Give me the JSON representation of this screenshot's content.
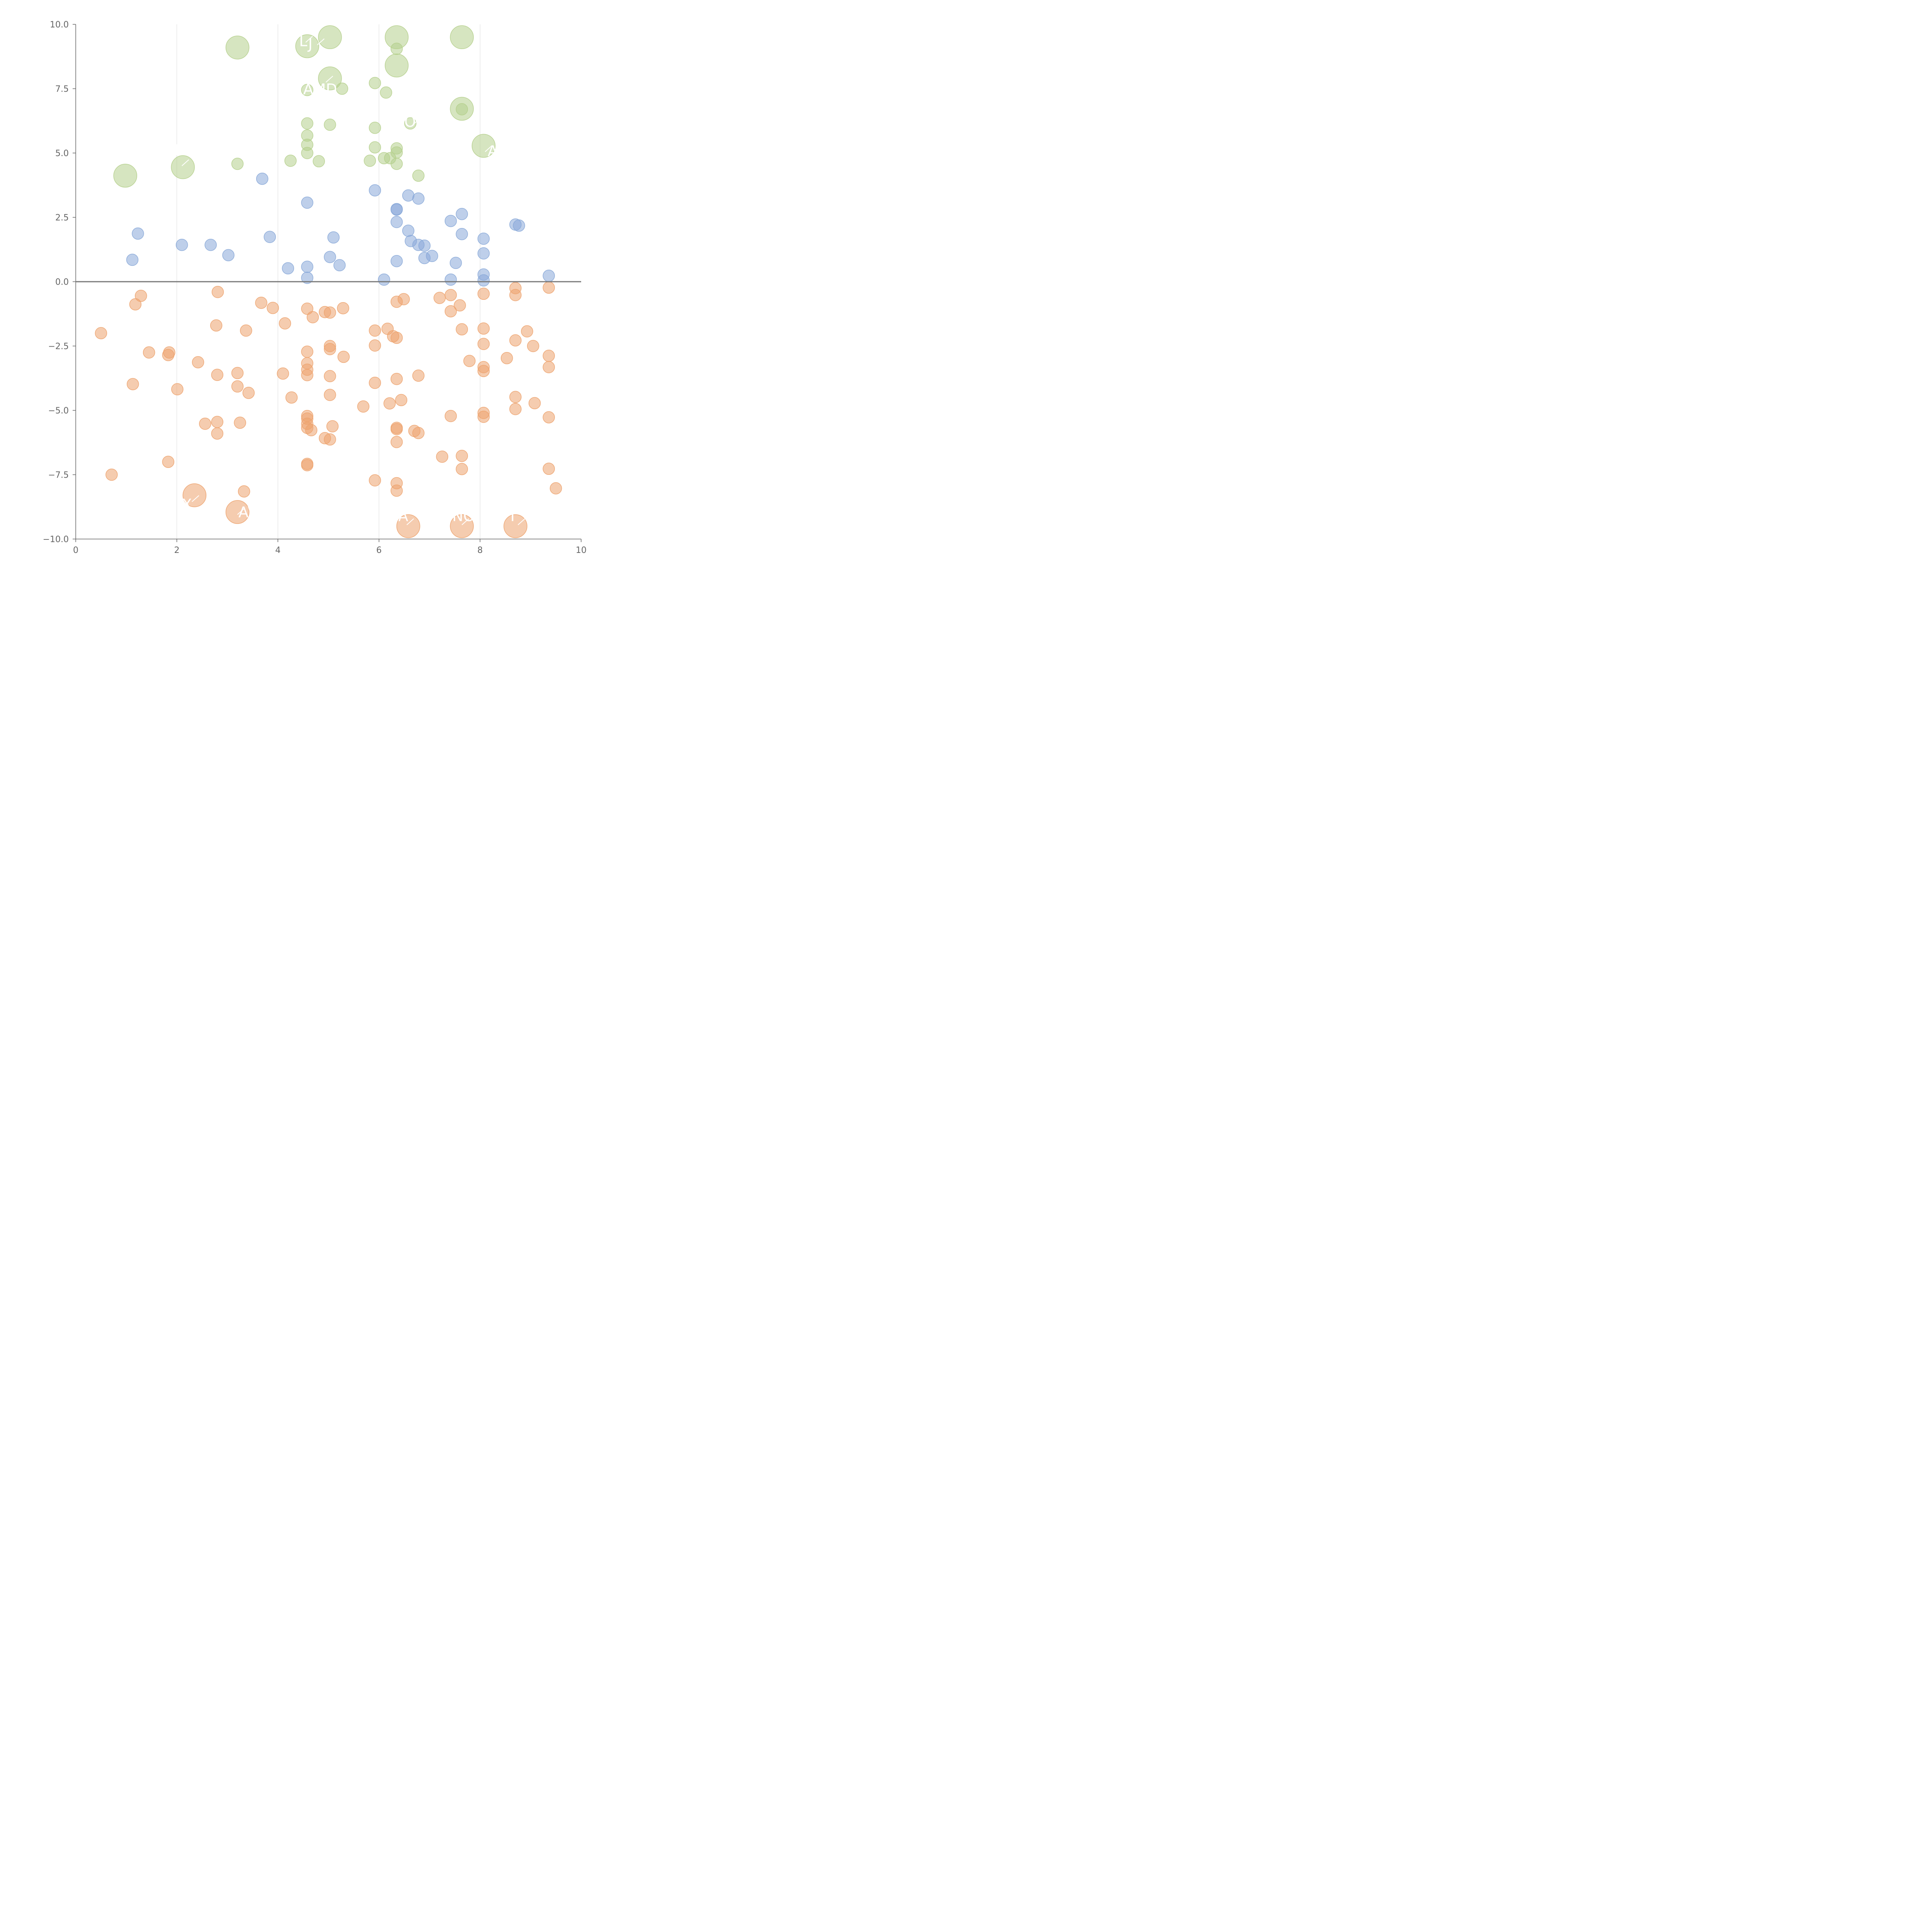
{
  "chart_data": {
    "type": "scatter",
    "xlim": [
      0,
      10
    ],
    "ylim": [
      -10,
      10
    ],
    "xticks": [
      "0",
      "2",
      "4",
      "6",
      "8",
      "10"
    ],
    "yticks": [
      "10.0",
      "7.5",
      "5.0",
      "2.5",
      "0.0",
      "−2.5",
      "−5.0",
      "−7.5",
      "−10.0"
    ],
    "xtick_values": [
      0,
      2,
      4,
      6,
      8,
      10
    ],
    "ytick_values": [
      10,
      7.5,
      5,
      2.5,
      0,
      -2.5,
      -5,
      -7.5,
      -10
    ],
    "vertical_grid_at": [
      2,
      4,
      6,
      8
    ],
    "zero_line": true,
    "colors": {
      "top": "#b5cf8c",
      "middle": "#88a8d8",
      "bottom": "#eda36e",
      "axis": "#666666",
      "grid": "#dddddd"
    },
    "series": [
      {
        "name": "top",
        "color": "#b5cf8c",
        "points": [
          [
            3.2,
            9.1,
            "L"
          ],
          [
            4.58,
            9.15,
            "L"
          ],
          [
            5.03,
            9.5,
            "L"
          ],
          [
            6.35,
            9.5,
            "L"
          ],
          [
            7.64,
            9.5,
            "L"
          ],
          [
            6.35,
            8.4,
            "L"
          ],
          [
            5.03,
            7.9,
            "L"
          ],
          [
            7.64,
            6.72,
            "L"
          ],
          [
            8.07,
            5.28,
            "L"
          ],
          [
            2.12,
            4.45,
            "L"
          ],
          [
            0.98,
            4.12,
            "L"
          ],
          [
            6.35,
            9.05,
            "S"
          ],
          [
            4.58,
            7.45,
            "S"
          ],
          [
            5.27,
            7.5,
            "S"
          ],
          [
            5.92,
            7.72,
            "S"
          ],
          [
            6.14,
            7.35,
            "S"
          ],
          [
            4.58,
            6.15,
            "S"
          ],
          [
            5.03,
            6.1,
            "S"
          ],
          [
            5.92,
            5.98,
            "S"
          ],
          [
            6.62,
            6.15,
            "S"
          ],
          [
            7.64,
            6.7,
            "S"
          ],
          [
            4.58,
            5.68,
            "S"
          ],
          [
            4.58,
            5.32,
            "S"
          ],
          [
            5.92,
            5.22,
            "S"
          ],
          [
            6.35,
            5.18,
            "S"
          ],
          [
            6.35,
            5.02,
            "S"
          ],
          [
            4.58,
            5.0,
            "S"
          ],
          [
            4.25,
            4.7,
            "S"
          ],
          [
            4.81,
            4.68,
            "S"
          ],
          [
            5.82,
            4.7,
            "S"
          ],
          [
            6.1,
            4.8,
            "S"
          ],
          [
            6.22,
            4.8,
            "S"
          ],
          [
            6.35,
            4.58,
            "S"
          ],
          [
            3.2,
            4.58,
            "S"
          ],
          [
            6.78,
            4.12,
            "S"
          ]
        ]
      },
      {
        "name": "middle",
        "color": "#88a8d8",
        "points": [
          [
            3.69,
            4.0
          ],
          [
            5.92,
            3.55
          ],
          [
            4.58,
            3.07
          ],
          [
            6.58,
            3.35
          ],
          [
            6.78,
            3.23
          ],
          [
            6.35,
            2.8
          ],
          [
            6.35,
            2.82
          ],
          [
            7.64,
            2.63
          ],
          [
            7.42,
            2.36
          ],
          [
            6.35,
            2.32
          ],
          [
            8.7,
            2.22
          ],
          [
            8.77,
            2.18
          ],
          [
            1.23,
            1.87
          ],
          [
            6.58,
            1.98
          ],
          [
            7.64,
            1.85
          ],
          [
            3.84,
            1.74
          ],
          [
            5.1,
            1.72
          ],
          [
            8.07,
            1.67
          ],
          [
            6.63,
            1.58
          ],
          [
            2.1,
            1.43
          ],
          [
            2.67,
            1.43
          ],
          [
            6.78,
            1.43
          ],
          [
            6.9,
            1.4
          ],
          [
            8.07,
            1.1
          ],
          [
            3.02,
            1.03
          ],
          [
            7.05,
            1.0
          ],
          [
            5.03,
            0.96
          ],
          [
            6.9,
            0.92
          ],
          [
            1.12,
            0.85
          ],
          [
            6.35,
            0.8
          ],
          [
            7.52,
            0.73
          ],
          [
            5.22,
            0.64
          ],
          [
            4.58,
            0.58
          ],
          [
            4.2,
            0.52
          ],
          [
            8.07,
            0.28
          ],
          [
            9.36,
            0.23
          ],
          [
            4.58,
            0.15
          ],
          [
            6.1,
            0.08
          ],
          [
            7.42,
            0.08
          ],
          [
            8.07,
            0.05
          ]
        ]
      },
      {
        "name": "bottom",
        "color": "#eda36e",
        "points": [
          [
            2.35,
            -8.3,
            "L"
          ],
          [
            3.2,
            -8.95,
            "L"
          ],
          [
            6.58,
            -9.5,
            "L"
          ],
          [
            7.64,
            -9.5,
            "L"
          ],
          [
            8.7,
            -9.5,
            "L"
          ],
          [
            1.29,
            -0.55,
            "S"
          ],
          [
            1.18,
            -0.88,
            "S"
          ],
          [
            2.81,
            -0.4,
            "S"
          ],
          [
            3.67,
            -0.82,
            "S"
          ],
          [
            3.9,
            -1.02,
            "S"
          ],
          [
            4.58,
            -1.05,
            "S"
          ],
          [
            4.93,
            -1.18,
            "S"
          ],
          [
            5.03,
            -1.2,
            "S"
          ],
          [
            5.29,
            -1.03,
            "S"
          ],
          [
            4.69,
            -1.38,
            "S"
          ],
          [
            4.14,
            -1.62,
            "S"
          ],
          [
            2.78,
            -1.7,
            "S"
          ],
          [
            3.37,
            -1.9,
            "S"
          ],
          [
            0.5,
            -2.0,
            "S"
          ],
          [
            5.92,
            -1.9,
            "S"
          ],
          [
            6.17,
            -1.83,
            "S"
          ],
          [
            6.28,
            -2.12,
            "S"
          ],
          [
            6.35,
            -2.18,
            "S"
          ],
          [
            6.35,
            -0.78,
            "S"
          ],
          [
            6.49,
            -0.68,
            "S"
          ],
          [
            7.2,
            -0.63,
            "S"
          ],
          [
            7.42,
            -0.52,
            "S"
          ],
          [
            7.42,
            -1.15,
            "S"
          ],
          [
            7.6,
            -0.92,
            "S"
          ],
          [
            7.64,
            -1.85,
            "S"
          ],
          [
            8.07,
            -0.47,
            "S"
          ],
          [
            8.07,
            -1.82,
            "S"
          ],
          [
            8.7,
            -0.25,
            "S"
          ],
          [
            8.7,
            -0.52,
            "S"
          ],
          [
            9.36,
            -0.23,
            "S"
          ],
          [
            8.93,
            -1.93,
            "S"
          ],
          [
            1.45,
            -2.75,
            "S"
          ],
          [
            1.85,
            -2.75,
            "S"
          ],
          [
            1.83,
            -2.85,
            "S"
          ],
          [
            2.42,
            -3.13,
            "S"
          ],
          [
            4.58,
            -2.72,
            "S"
          ],
          [
            5.03,
            -2.5,
            "S"
          ],
          [
            5.03,
            -2.62,
            "S"
          ],
          [
            5.3,
            -2.92,
            "S"
          ],
          [
            5.92,
            -2.48,
            "S"
          ],
          [
            8.07,
            -2.42,
            "S"
          ],
          [
            8.7,
            -2.28,
            "S"
          ],
          [
            9.05,
            -2.5,
            "S"
          ],
          [
            9.36,
            -2.88,
            "S"
          ],
          [
            8.53,
            -2.97,
            "S"
          ],
          [
            7.79,
            -3.08,
            "S"
          ],
          [
            4.58,
            -3.17,
            "S"
          ],
          [
            4.58,
            -3.42,
            "S"
          ],
          [
            4.58,
            -3.63,
            "S"
          ],
          [
            2.8,
            -3.62,
            "S"
          ],
          [
            3.2,
            -3.55,
            "S"
          ],
          [
            4.1,
            -3.57,
            "S"
          ],
          [
            5.03,
            -3.67,
            "S"
          ],
          [
            6.35,
            -3.78,
            "S"
          ],
          [
            6.78,
            -3.65,
            "S"
          ],
          [
            8.07,
            -3.32,
            "S"
          ],
          [
            8.07,
            -3.47,
            "S"
          ],
          [
            9.36,
            -3.32,
            "S"
          ],
          [
            1.13,
            -3.98,
            "S"
          ],
          [
            2.01,
            -4.18,
            "S"
          ],
          [
            3.2,
            -4.07,
            "S"
          ],
          [
            3.42,
            -4.32,
            "S"
          ],
          [
            5.92,
            -3.93,
            "S"
          ],
          [
            4.27,
            -4.5,
            "S"
          ],
          [
            5.03,
            -4.4,
            "S"
          ],
          [
            6.44,
            -4.6,
            "S"
          ],
          [
            6.21,
            -4.73,
            "S"
          ],
          [
            5.69,
            -4.85,
            "S"
          ],
          [
            8.7,
            -4.48,
            "S"
          ],
          [
            9.08,
            -4.72,
            "S"
          ],
          [
            8.7,
            -4.95,
            "S"
          ],
          [
            8.07,
            -5.1,
            "S"
          ],
          [
            8.07,
            -5.25,
            "S"
          ],
          [
            7.42,
            -5.22,
            "S"
          ],
          [
            9.36,
            -5.27,
            "S"
          ],
          [
            4.58,
            -5.22,
            "S"
          ],
          [
            4.58,
            -5.32,
            "S"
          ],
          [
            4.58,
            -5.52,
            "S"
          ],
          [
            4.58,
            -5.68,
            "S"
          ],
          [
            4.66,
            -5.77,
            "S"
          ],
          [
            5.08,
            -5.62,
            "S"
          ],
          [
            2.8,
            -5.45,
            "S"
          ],
          [
            3.25,
            -5.48,
            "S"
          ],
          [
            2.56,
            -5.52,
            "S"
          ],
          [
            2.8,
            -5.9,
            "S"
          ],
          [
            6.35,
            -5.68,
            "S"
          ],
          [
            6.35,
            -5.73,
            "S"
          ],
          [
            6.7,
            -5.8,
            "S"
          ],
          [
            6.78,
            -5.88,
            "S"
          ],
          [
            4.93,
            -6.08,
            "S"
          ],
          [
            5.03,
            -6.13,
            "S"
          ],
          [
            6.35,
            -6.23,
            "S"
          ],
          [
            1.83,
            -7.0,
            "S"
          ],
          [
            0.71,
            -7.5,
            "S"
          ],
          [
            4.58,
            -7.08,
            "S"
          ],
          [
            4.58,
            -7.13,
            "S"
          ],
          [
            7.25,
            -6.8,
            "S"
          ],
          [
            7.64,
            -6.77,
            "S"
          ],
          [
            7.64,
            -7.28,
            "S"
          ],
          [
            9.36,
            -7.27,
            "S"
          ],
          [
            5.92,
            -7.72,
            "S"
          ],
          [
            6.35,
            -7.83,
            "S"
          ],
          [
            6.35,
            -8.12,
            "S"
          ],
          [
            3.33,
            -8.15,
            "S"
          ],
          [
            9.5,
            -8.03,
            "S"
          ]
        ]
      }
    ],
    "point_labels": [
      "L",
      "J",
      "AMD",
      "OC",
      "A",
      "N",
      "X",
      "AV",
      "VA",
      "NO",
      "I"
    ]
  }
}
